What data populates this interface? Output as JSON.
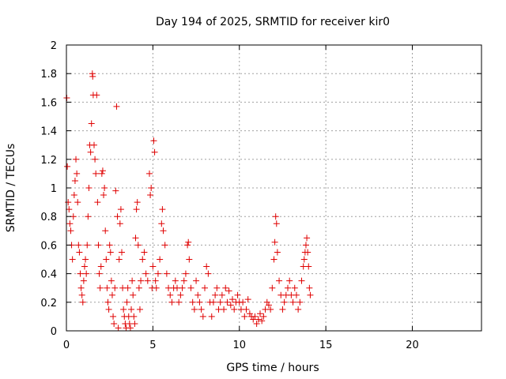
{
  "chart_data": {
    "type": "scatter",
    "title": "Day 194 of 2025, SRMTID for receiver kir0",
    "xlabel": "GPS time / hours",
    "ylabel": "SRMTID / TECUs",
    "xlim": [
      0,
      24
    ],
    "ylim": [
      0,
      2
    ],
    "xticks": [
      0,
      5,
      10,
      15,
      20
    ],
    "yticks": [
      0,
      0.2,
      0.4,
      0.6,
      0.8,
      1,
      1.2,
      1.4,
      1.6,
      1.8,
      2
    ],
    "x_tick_labels": [
      "0",
      "5",
      "10",
      "15",
      "20"
    ],
    "y_tick_labels": [
      "0",
      "0.2",
      "0.4",
      "0.6",
      "0.8",
      "1",
      "1.2",
      "1.4",
      "1.6",
      "1.8",
      "2"
    ],
    "grid": true,
    "marker": "+",
    "color": "#e00000",
    "series": [
      {
        "name": "kir0",
        "points": [
          [
            0.02,
            1.63
          ],
          [
            0.05,
            1.15
          ],
          [
            0.1,
            0.9
          ],
          [
            0.15,
            0.85
          ],
          [
            0.2,
            0.75
          ],
          [
            0.25,
            0.7
          ],
          [
            0.3,
            0.6
          ],
          [
            0.35,
            0.5
          ],
          [
            0.4,
            0.8
          ],
          [
            0.45,
            0.95
          ],
          [
            0.5,
            1.05
          ],
          [
            0.55,
            1.2
          ],
          [
            0.6,
            1.1
          ],
          [
            0.65,
            0.9
          ],
          [
            0.7,
            0.6
          ],
          [
            0.75,
            0.55
          ],
          [
            0.8,
            0.4
          ],
          [
            0.85,
            0.3
          ],
          [
            0.9,
            0.25
          ],
          [
            0.95,
            0.2
          ],
          [
            1.0,
            0.35
          ],
          [
            1.05,
            0.45
          ],
          [
            1.1,
            0.5
          ],
          [
            1.15,
            0.4
          ],
          [
            1.2,
            0.6
          ],
          [
            1.25,
            0.8
          ],
          [
            1.3,
            1.0
          ],
          [
            1.35,
            1.3
          ],
          [
            1.4,
            1.25
          ],
          [
            1.45,
            1.45
          ],
          [
            1.5,
            1.8
          ],
          [
            1.52,
            1.78
          ],
          [
            1.55,
            1.65
          ],
          [
            1.6,
            1.3
          ],
          [
            1.65,
            1.2
          ],
          [
            1.7,
            1.1
          ],
          [
            1.75,
            1.65
          ],
          [
            1.8,
            0.9
          ],
          [
            1.85,
            0.6
          ],
          [
            1.9,
            0.4
          ],
          [
            1.95,
            0.3
          ],
          [
            2.0,
            0.45
          ],
          [
            2.05,
            1.1
          ],
          [
            2.1,
            1.12
          ],
          [
            2.15,
            0.95
          ],
          [
            2.2,
            1.0
          ],
          [
            2.25,
            0.7
          ],
          [
            2.3,
            0.5
          ],
          [
            2.35,
            0.3
          ],
          [
            2.4,
            0.2
          ],
          [
            2.45,
            0.15
          ],
          [
            2.5,
            0.6
          ],
          [
            2.55,
            0.55
          ],
          [
            2.6,
            0.35
          ],
          [
            2.65,
            0.25
          ],
          [
            2.7,
            0.1
          ],
          [
            2.75,
            0.05
          ],
          [
            2.8,
            0.3
          ],
          [
            2.85,
            0.98
          ],
          [
            2.9,
            1.57
          ],
          [
            2.95,
            0.8
          ],
          [
            3.0,
            0.02
          ],
          [
            3.05,
            0.5
          ],
          [
            3.1,
            0.75
          ],
          [
            3.15,
            0.85
          ],
          [
            3.2,
            0.55
          ],
          [
            3.25,
            0.3
          ],
          [
            3.3,
            0.15
          ],
          [
            3.35,
            0.1
          ],
          [
            3.4,
            0.05
          ],
          [
            3.45,
            0.02
          ],
          [
            3.5,
            0.2
          ],
          [
            3.55,
            0.3
          ],
          [
            3.6,
            0.1
          ],
          [
            3.65,
            0.05
          ],
          [
            3.7,
            0.02
          ],
          [
            3.75,
            0.15
          ],
          [
            3.8,
            0.35
          ],
          [
            3.85,
            0.25
          ],
          [
            3.9,
            0.1
          ],
          [
            3.95,
            0.05
          ],
          [
            4.0,
            0.65
          ],
          [
            4.05,
            0.85
          ],
          [
            4.1,
            0.9
          ],
          [
            4.15,
            0.6
          ],
          [
            4.2,
            0.3
          ],
          [
            4.25,
            0.15
          ],
          [
            4.3,
            0.35
          ],
          [
            4.4,
            0.5
          ],
          [
            4.5,
            0.55
          ],
          [
            4.6,
            0.4
          ],
          [
            4.7,
            0.35
          ],
          [
            4.8,
            1.1
          ],
          [
            4.85,
            0.95
          ],
          [
            4.9,
            1.0
          ],
          [
            4.95,
            0.3
          ],
          [
            5.0,
            0.45
          ],
          [
            5.05,
            1.33
          ],
          [
            5.1,
            1.25
          ],
          [
            5.15,
            0.35
          ],
          [
            5.2,
            0.3
          ],
          [
            5.3,
            0.4
          ],
          [
            5.4,
            0.5
          ],
          [
            5.5,
            0.75
          ],
          [
            5.55,
            0.85
          ],
          [
            5.6,
            0.7
          ],
          [
            5.7,
            0.6
          ],
          [
            5.8,
            0.4
          ],
          [
            5.9,
            0.3
          ],
          [
            6.0,
            0.25
          ],
          [
            6.1,
            0.2
          ],
          [
            6.2,
            0.3
          ],
          [
            6.3,
            0.35
          ],
          [
            6.4,
            0.3
          ],
          [
            6.5,
            0.2
          ],
          [
            6.6,
            0.25
          ],
          [
            6.7,
            0.3
          ],
          [
            6.8,
            0.35
          ],
          [
            6.9,
            0.4
          ],
          [
            7.0,
            0.6
          ],
          [
            7.05,
            0.62
          ],
          [
            7.1,
            0.5
          ],
          [
            7.2,
            0.3
          ],
          [
            7.3,
            0.2
          ],
          [
            7.4,
            0.15
          ],
          [
            7.5,
            0.35
          ],
          [
            7.6,
            0.25
          ],
          [
            7.7,
            0.2
          ],
          [
            7.8,
            0.15
          ],
          [
            7.9,
            0.1
          ],
          [
            8.0,
            0.3
          ],
          [
            8.1,
            0.45
          ],
          [
            8.2,
            0.4
          ],
          [
            8.3,
            0.2
          ],
          [
            8.4,
            0.1
          ],
          [
            8.5,
            0.2
          ],
          [
            8.6,
            0.25
          ],
          [
            8.7,
            0.3
          ],
          [
            8.8,
            0.15
          ],
          [
            8.9,
            0.2
          ],
          [
            9.0,
            0.25
          ],
          [
            9.1,
            0.15
          ],
          [
            9.2,
            0.3
          ],
          [
            9.3,
            0.2
          ],
          [
            9.4,
            0.28
          ],
          [
            9.5,
            0.18
          ],
          [
            9.6,
            0.22
          ],
          [
            9.7,
            0.15
          ],
          [
            9.8,
            0.2
          ],
          [
            9.9,
            0.25
          ],
          [
            10.0,
            0.2
          ],
          [
            10.1,
            0.15
          ],
          [
            10.2,
            0.2
          ],
          [
            10.3,
            0.1
          ],
          [
            10.4,
            0.15
          ],
          [
            10.5,
            0.22
          ],
          [
            10.6,
            0.12
          ],
          [
            10.7,
            0.1
          ],
          [
            10.8,
            0.08
          ],
          [
            10.9,
            0.1
          ],
          [
            11.0,
            0.05
          ],
          [
            11.1,
            0.08
          ],
          [
            11.2,
            0.12
          ],
          [
            11.3,
            0.07
          ],
          [
            11.4,
            0.1
          ],
          [
            11.5,
            0.15
          ],
          [
            11.6,
            0.2
          ],
          [
            11.7,
            0.18
          ],
          [
            11.8,
            0.15
          ],
          [
            11.9,
            0.3
          ],
          [
            12.0,
            0.5
          ],
          [
            12.05,
            0.62
          ],
          [
            12.1,
            0.8
          ],
          [
            12.15,
            0.75
          ],
          [
            12.2,
            0.55
          ],
          [
            12.3,
            0.35
          ],
          [
            12.4,
            0.25
          ],
          [
            12.5,
            0.15
          ],
          [
            12.6,
            0.2
          ],
          [
            12.7,
            0.25
          ],
          [
            12.8,
            0.3
          ],
          [
            12.9,
            0.35
          ],
          [
            13.0,
            0.25
          ],
          [
            13.1,
            0.2
          ],
          [
            13.2,
            0.3
          ],
          [
            13.3,
            0.25
          ],
          [
            13.4,
            0.15
          ],
          [
            13.5,
            0.2
          ],
          [
            13.6,
            0.35
          ],
          [
            13.7,
            0.45
          ],
          [
            13.75,
            0.5
          ],
          [
            13.8,
            0.55
          ],
          [
            13.85,
            0.6
          ],
          [
            13.9,
            0.65
          ],
          [
            13.95,
            0.55
          ],
          [
            14.0,
            0.45
          ],
          [
            14.05,
            0.3
          ],
          [
            14.1,
            0.25
          ]
        ]
      }
    ]
  }
}
